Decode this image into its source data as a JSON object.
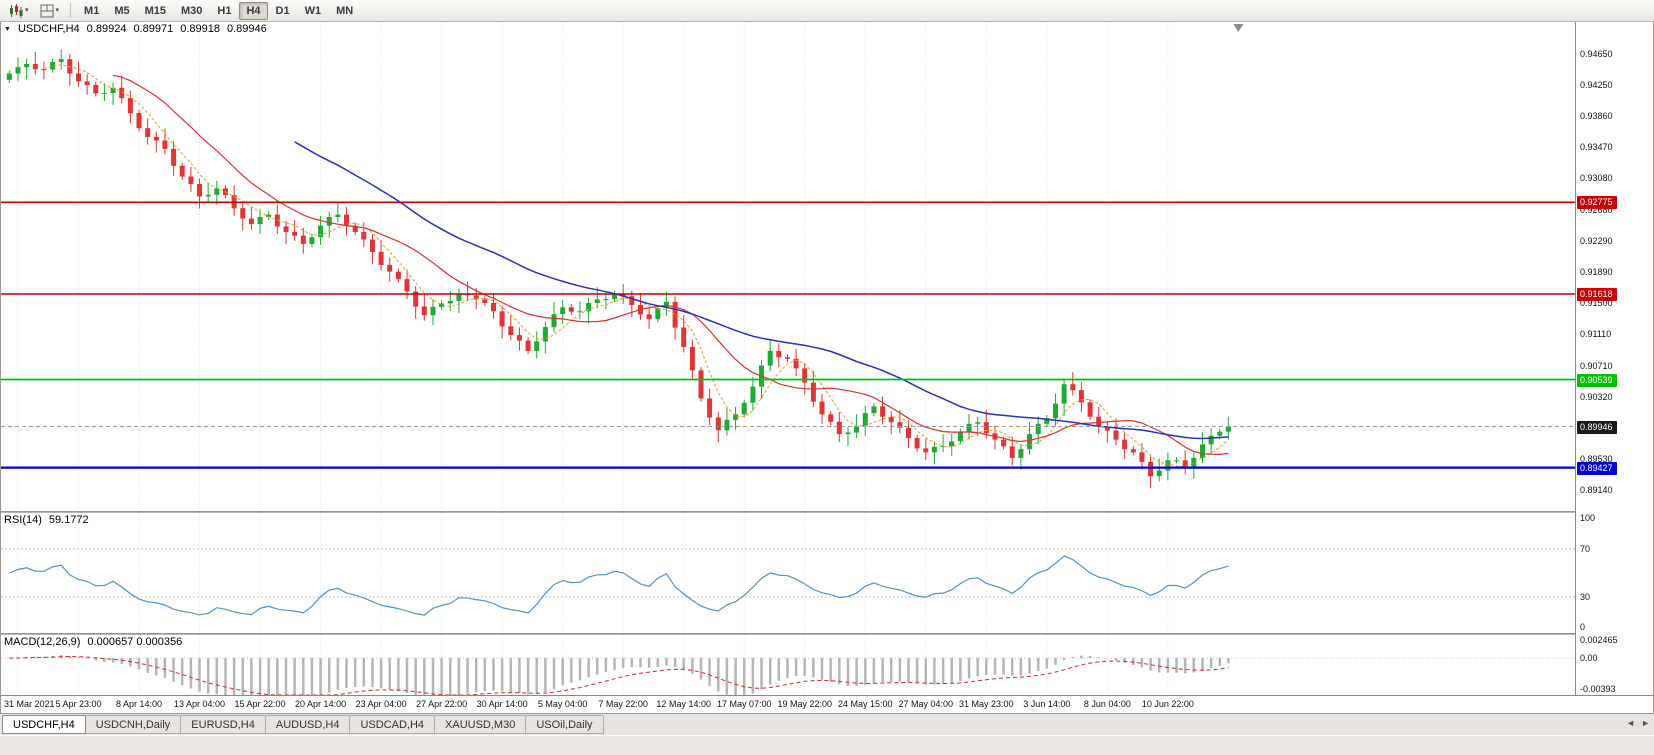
{
  "icons": {
    "collapse": "▼",
    "caret": "▾",
    "scroll_left": "◄",
    "scroll_right": "►"
  },
  "toolbar": {
    "chart_type_button": "candlestick-chart-icon",
    "layout_button": "chart-grid-icon",
    "timeframes": [
      "M1",
      "M5",
      "M15",
      "M30",
      "H1",
      "H4",
      "D1",
      "W1",
      "MN"
    ],
    "active_timeframe": "H4"
  },
  "main_chart": {
    "header": {
      "symbol": "USDCHF,H4",
      "open": "0.89924",
      "high": "0.89971",
      "low": "0.89918",
      "close": "0.89946"
    },
    "price_labels": [
      "0.94650",
      "0.94250",
      "0.93860",
      "0.93470",
      "0.93080",
      "0.92680",
      "0.92290",
      "0.91890",
      "0.91500",
      "0.91110",
      "0.90710",
      "0.90320",
      "0.89930",
      "0.89530",
      "0.89140"
    ],
    "levels": [
      {
        "price": 0.92775,
        "label": "0.92775",
        "color": "#cc0000",
        "line_width": 1.6
      },
      {
        "price": 0.91618,
        "label": "0.91618",
        "color": "#cc0000",
        "line_width": 1.6
      },
      {
        "price": 0.90539,
        "label": "0.90539",
        "color": "#00c400",
        "line_width": 1.8
      },
      {
        "price": 0.89427,
        "label": "0.89427",
        "color": "#0000dd",
        "line_width": 2.2
      }
    ],
    "current_price": {
      "price": 0.89946,
      "label": "0.89946",
      "box_color": "#1a1a1a"
    },
    "colors": {
      "up": "#1daa35",
      "down": "#e53232",
      "ma_fast": "#e03030",
      "ma_slow": "#2830c8",
      "ma_mid": "#e8a020"
    }
  },
  "rsi": {
    "name": "RSI(14)",
    "value": "59.1772",
    "period": 14,
    "levels": [
      70,
      30
    ],
    "line_color": "#4f94cd",
    "axis_labels": [
      {
        "text": "100",
        "value": 100
      },
      {
        "text": "70",
        "value": 70
      },
      {
        "text": "30",
        "value": 30
      },
      {
        "text": "0",
        "value": 0
      }
    ]
  },
  "macd": {
    "name": "MACD(12,26,9)",
    "values": "0.000657 0.000356",
    "fast": 12,
    "slow": 26,
    "signal": 9,
    "max": 0.002465,
    "min": -0.00393,
    "histogram_color": "#b4b4b4",
    "signal_color": "#dd2222",
    "axis_labels": [
      {
        "text": "0.002465",
        "value": 0.002465
      },
      {
        "text": "0.00",
        "value": 0
      },
      {
        "text": "-0.00393",
        "value": -0.00393
      }
    ]
  },
  "time_axis": {
    "labels": [
      "31 Mar 2021",
      "5 Apr 23:00",
      "8 Apr 14:00",
      "13 Apr 04:00",
      "15 Apr 22:00",
      "20 Apr 14:00",
      "23 Apr 04:00",
      "27 Apr 22:00",
      "30 Apr 14:00",
      "5 May 04:00",
      "7 May 22:00",
      "12 May 14:00",
      "17 May 07:00",
      "19 May 22:00",
      "24 May 15:00",
      "27 May 04:00",
      "31 May 23:00",
      "3 Jun 14:00",
      "8 Jun 04:00",
      "10 Jun 22:00"
    ]
  },
  "tabs": {
    "items": [
      {
        "label": "USDCHF,H4",
        "active": true
      },
      {
        "label": "USDCNH,Daily",
        "active": false
      },
      {
        "label": "EURUSD,H4",
        "active": false
      },
      {
        "label": "AUDUSD,H4",
        "active": false
      },
      {
        "label": "USDCAD,H4",
        "active": false
      },
      {
        "label": "XAUUSD,M30",
        "active": false
      },
      {
        "label": "USOil,Daily",
        "active": false
      }
    ]
  },
  "chart_data": {
    "type": "candlestick",
    "title": "USDCHF,H4",
    "symbol": "USDCHF",
    "timeframe": "H4",
    "ylim": [
      0.8888,
      0.9505
    ],
    "shift_fraction": 0.78,
    "tick_first": 1,
    "tick_step": 7,
    "first_open": 0.9432,
    "closes": [
      0.944,
      0.9448,
      0.9452,
      0.94455,
      0.9445,
      0.94545,
      0.9458,
      0.944,
      0.943,
      0.94255,
      0.9415,
      0.94155,
      0.9422,
      0.9409,
      0.939,
      0.9371,
      0.936,
      0.93555,
      0.9345,
      0.93235,
      0.931,
      0.93005,
      0.9285,
      0.9287,
      0.9295,
      0.92865,
      0.927,
      0.9257,
      0.925,
      0.9259,
      0.9262,
      0.9247,
      0.924,
      0.92355,
      0.9225,
      0.92335,
      0.9248,
      0.9259,
      0.9262,
      0.9248,
      0.924,
      0.92305,
      0.9215,
      0.91985,
      0.919,
      0.91805,
      0.9165,
      0.9146,
      0.9135,
      0.91455,
      0.915,
      0.9153,
      0.9162,
      0.916,
      0.9155,
      0.91505,
      0.914,
      0.9121,
      0.911,
      0.9103,
      0.909,
      0.9102,
      0.912,
      0.91365,
      0.9145,
      0.91395,
      0.914,
      0.91505,
      0.9155,
      0.91555,
      0.9162,
      0.9159,
      0.9148,
      0.9136,
      0.913,
      0.9144,
      0.9152,
      0.91195,
      0.9095,
      0.90655,
      0.903,
      0.9006,
      0.899,
      0.9003,
      0.901,
      0.90245,
      0.9045,
      0.90715,
      0.909,
      0.9082,
      0.908,
      0.9068,
      0.905,
      0.9026,
      0.901,
      0.90005,
      0.8985,
      0.8987,
      0.8995,
      0.90115,
      0.902,
      0.9007,
      0.9,
      0.8993,
      0.898,
      0.8967,
      0.8962,
      0.8969,
      0.897,
      0.8976,
      0.8988,
      0.8998,
      0.9,
      0.8986,
      0.8978,
      0.89695,
      0.8955,
      0.8966,
      0.8985,
      0.8998,
      0.9005,
      0.90235,
      0.9048,
      0.90405,
      0.9025,
      0.9007,
      0.8995,
      0.89895,
      0.8978,
      0.8966,
      0.8962,
      0.895,
      0.8932,
      0.8939,
      0.8952,
      0.8952,
      0.8944,
      0.8955,
      0.8972,
      0.8983,
      0.8988,
      0.89946
    ]
  }
}
